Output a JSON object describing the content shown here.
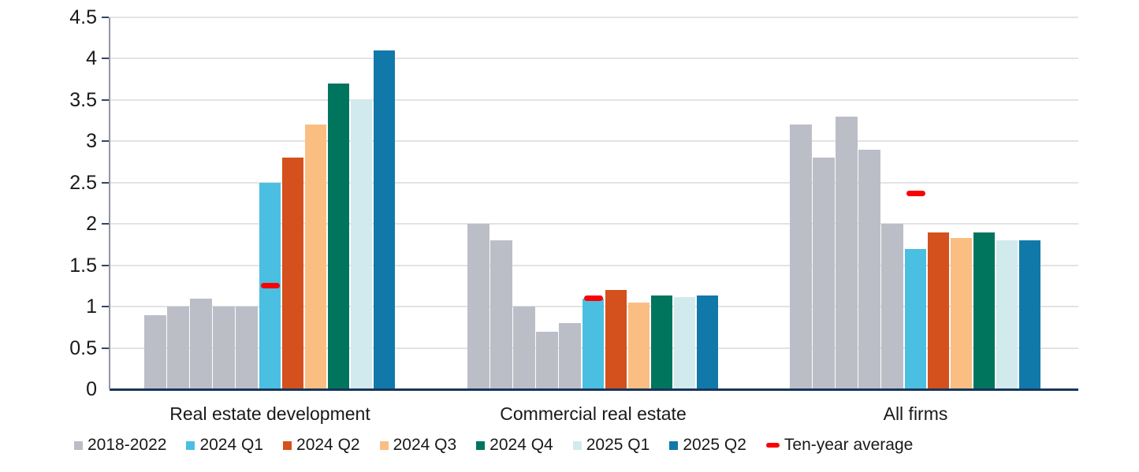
{
  "chart_data": {
    "type": "bar",
    "title": "",
    "xlabel": "",
    "ylabel": "",
    "ylim": [
      0,
      4.5
    ],
    "yticks": [
      0,
      0.5,
      1,
      1.5,
      2,
      2.5,
      3,
      3.5,
      4,
      4.5
    ],
    "grid": true,
    "legend_position": "bottom-left",
    "categories": [
      "Real estate development",
      "Commercial real estate",
      "All firms"
    ],
    "gray_series": {
      "name": "2018-2022",
      "color": "#BCBEC7",
      "values": [
        [
          0.9,
          1.0,
          1.1,
          1.0,
          1.0
        ],
        [
          2.0,
          1.8,
          1.0,
          0.7,
          0.8
        ],
        [
          3.2,
          2.8,
          3.3,
          2.9,
          2.0
        ]
      ]
    },
    "series": [
      {
        "name": "2024 Q1",
        "color": "#4BBFE1",
        "values": [
          2.5,
          1.1,
          1.7
        ]
      },
      {
        "name": "2024 Q2",
        "color": "#D4501C",
        "values": [
          2.8,
          1.2,
          1.9
        ]
      },
      {
        "name": "2024 Q3",
        "color": "#FBBE82",
        "values": [
          3.2,
          1.05,
          1.83
        ]
      },
      {
        "name": "2024 Q4",
        "color": "#00755E",
        "values": [
          3.7,
          1.13,
          1.9
        ]
      },
      {
        "name": "2025 Q1",
        "color": "#D1EAEE",
        "values": [
          3.5,
          1.12,
          1.8
        ]
      },
      {
        "name": "2025 Q2",
        "color": "#1179A9",
        "values": [
          4.1,
          1.13,
          1.8
        ]
      }
    ],
    "average_series": {
      "name": "Ten-year average",
      "color": "#FB0005",
      "values": [
        1.25,
        1.1,
        2.37
      ]
    },
    "colors": {
      "gridline": "#E3E3E5",
      "bottom_axis": "#16365C",
      "left_axis": "#9296A4",
      "tick": "#31456B",
      "text": "#191919"
    }
  }
}
